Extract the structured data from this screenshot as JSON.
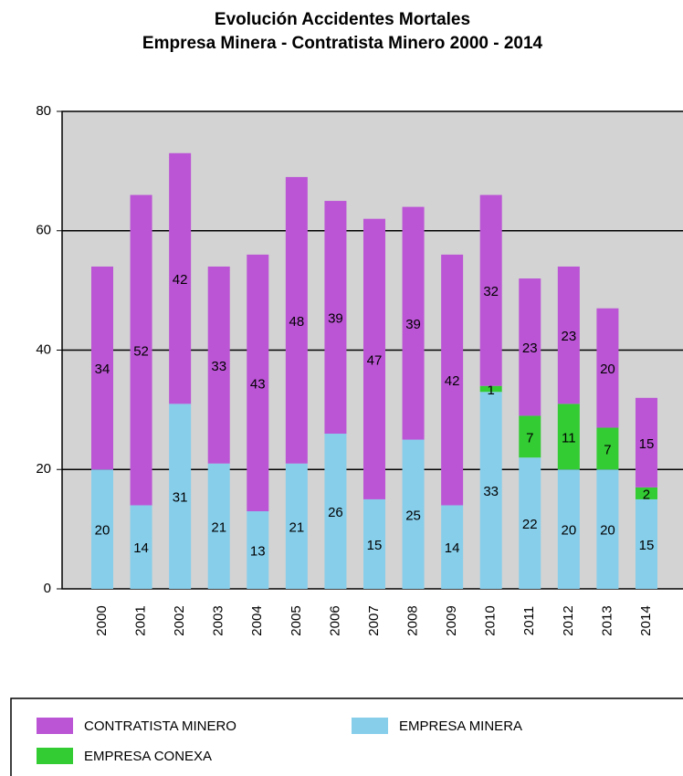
{
  "chart_data": {
    "type": "stacked_bar",
    "title": "Evolución Accidentes Mortales",
    "subtitle": "Empresa Minera - Contratista Minero  2000 - 2014",
    "categories": [
      "2000",
      "2001",
      "2002",
      "2003",
      "2004",
      "2005",
      "2006",
      "2007",
      "2008",
      "2009",
      "2010",
      "2011",
      "2012",
      "2013",
      "2014"
    ],
    "series": [
      {
        "name": "EMPRESA MINERA",
        "color": "#87ceeb",
        "values": [
          20,
          14,
          31,
          21,
          13,
          21,
          26,
          15,
          25,
          14,
          33,
          22,
          20,
          20,
          15
        ]
      },
      {
        "name": "EMPRESA CONEXA",
        "color": "#33cc33",
        "values": [
          null,
          null,
          null,
          null,
          null,
          null,
          null,
          null,
          null,
          null,
          1,
          7,
          11,
          7,
          2
        ]
      },
      {
        "name": "CONTRATISTA MINERO",
        "color": "#bb55d5",
        "values": [
          34,
          52,
          42,
          33,
          43,
          48,
          39,
          47,
          39,
          42,
          32,
          23,
          23,
          20,
          15
        ]
      }
    ],
    "ylim": [
      0,
      80
    ],
    "yticks": [
      0,
      20,
      40,
      60,
      80
    ],
    "grid": true
  }
}
